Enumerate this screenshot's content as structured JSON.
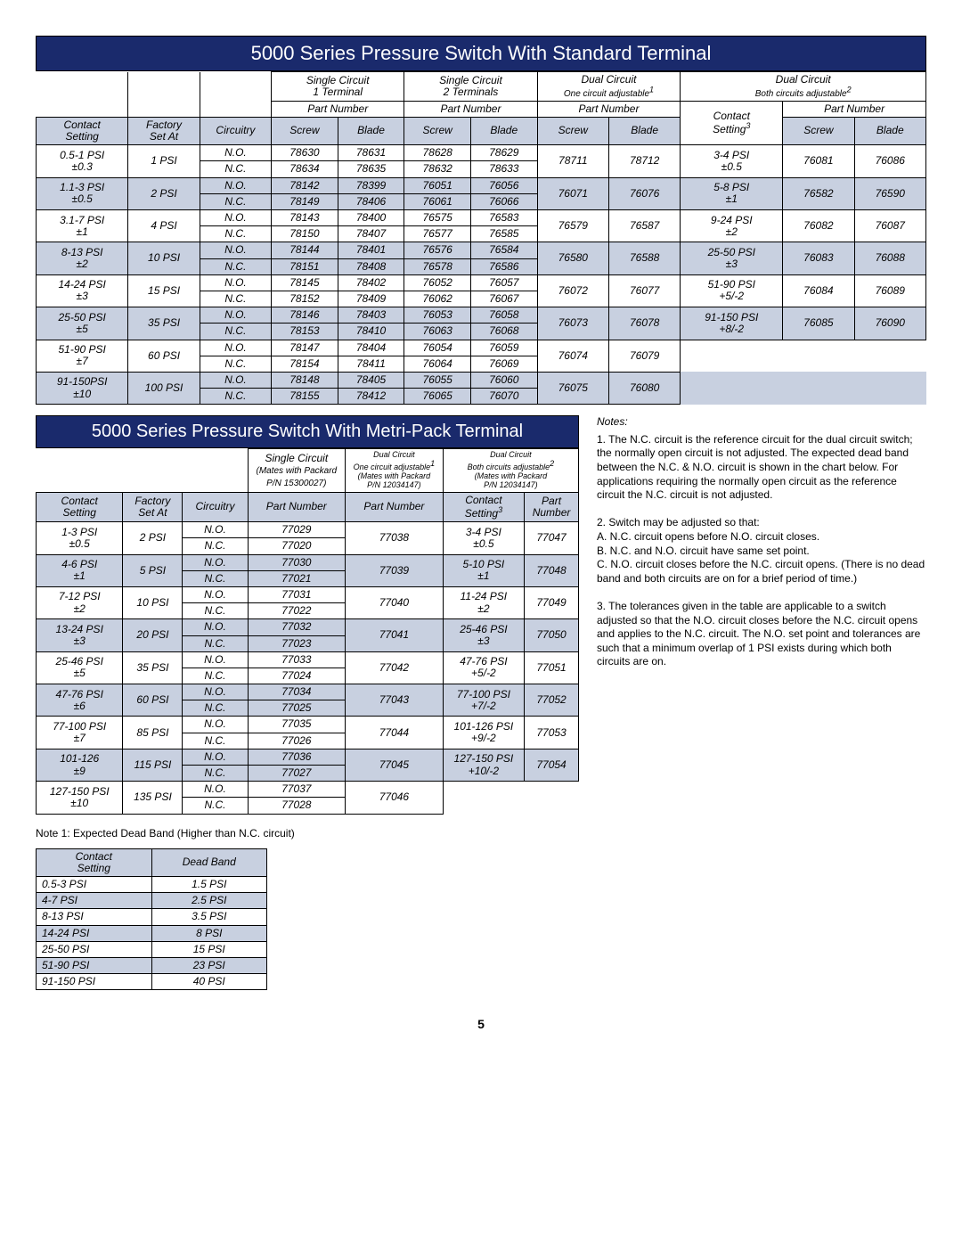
{
  "title1": "5000 Series Pressure Switch With Standard Terminal",
  "title2": "5000 Series Pressure Switch With Metri-Pack Terminal",
  "page": "5",
  "t1": {
    "h_sc1": "Single Circuit",
    "h_sc1b": "1 Terminal",
    "h_sc2": "Single Circuit",
    "h_sc2b": "2 Terminals",
    "h_dc1": "Dual Circuit",
    "h_dc1b": "One circuit adjustable",
    "h_dc2": "Dual Circuit",
    "h_dc2b": "Both circuits adjustable",
    "h_contact": "Contact",
    "h_setting": "Setting",
    "h_factory": "Factory",
    "h_setat": "Set At",
    "h_circ": "Circuitry",
    "h_pn": "Part Number",
    "h_screw": "Screw",
    "h_blade": "Blade",
    "h_contact2": "Contact",
    "h_setting3": "Setting",
    "rows": [
      {
        "cs": "0.5-1 PSI",
        "tol": "±0.3",
        "fa": "1 PSI",
        "no": [
          "78630",
          "78631",
          "78628",
          "78629"
        ],
        "nc": [
          "78634",
          "78635",
          "78632",
          "78633"
        ],
        "d1": [
          "78711",
          "78712"
        ],
        "d2cs": "3-4 PSI",
        "d2tol": "±0.5",
        "d2": [
          "76081",
          "76086"
        ]
      },
      {
        "cs": "1.1-3 PSI",
        "tol": "±0.5",
        "fa": "2 PSI",
        "no": [
          "78142",
          "78399",
          "76051",
          "76056"
        ],
        "nc": [
          "78149",
          "78406",
          "76061",
          "76066"
        ],
        "d1": [
          "76071",
          "76076"
        ],
        "d2cs": "5-8 PSI",
        "d2tol": "±1",
        "d2": [
          "76582",
          "76590"
        ],
        "shade": true
      },
      {
        "cs": "3.1-7 PSI",
        "tol": "±1",
        "fa": "4 PSI",
        "no": [
          "78143",
          "78400",
          "76575",
          "76583"
        ],
        "nc": [
          "78150",
          "78407",
          "76577",
          "76585"
        ],
        "d1": [
          "76579",
          "76587"
        ],
        "d2cs": "9-24 PSI",
        "d2tol": "±2",
        "d2": [
          "76082",
          "76087"
        ]
      },
      {
        "cs": "8-13 PSI",
        "tol": "±2",
        "fa": "10 PSI",
        "no": [
          "78144",
          "78401",
          "76576",
          "76584"
        ],
        "nc": [
          "78151",
          "78408",
          "76578",
          "76586"
        ],
        "d1": [
          "76580",
          "76588"
        ],
        "d2cs": "25-50 PSI",
        "d2tol": "±3",
        "d2": [
          "76083",
          "76088"
        ],
        "shade": true
      },
      {
        "cs": "14-24 PSI",
        "tol": "±3",
        "fa": "15 PSI",
        "no": [
          "78145",
          "78402",
          "76052",
          "76057"
        ],
        "nc": [
          "78152",
          "78409",
          "76062",
          "76067"
        ],
        "d1": [
          "76072",
          "76077"
        ],
        "d2cs": "51-90 PSI",
        "d2tol": "+5/-2",
        "d2": [
          "76084",
          "76089"
        ]
      },
      {
        "cs": "25-50 PSI",
        "tol": "±5",
        "fa": "35 PSI",
        "no": [
          "78146",
          "78403",
          "76053",
          "76058"
        ],
        "nc": [
          "78153",
          "78410",
          "76063",
          "76068"
        ],
        "d1": [
          "76073",
          "76078"
        ],
        "d2cs": "91-150 PSI",
        "d2tol": "+8/-2",
        "d2": [
          "76085",
          "76090"
        ],
        "shade": true
      },
      {
        "cs": "51-90 PSI",
        "tol": "±7",
        "fa": "60 PSI",
        "no": [
          "78147",
          "78404",
          "76054",
          "76059"
        ],
        "nc": [
          "78154",
          "78411",
          "76064",
          "76069"
        ],
        "d1": [
          "76074",
          "76079"
        ],
        "d2cs": "",
        "d2tol": "",
        "d2": [
          "",
          ""
        ]
      },
      {
        "cs": "91-150PSI",
        "tol": "±10",
        "fa": "100 PSI",
        "no": [
          "78148",
          "78405",
          "76055",
          "76060"
        ],
        "nc": [
          "78155",
          "78412",
          "76065",
          "76070"
        ],
        "d1": [
          "76075",
          "76080"
        ],
        "d2cs": "",
        "d2tol": "",
        "d2": [
          "",
          ""
        ],
        "shade": true
      }
    ]
  },
  "t2": {
    "h_sc": "Single Circuit",
    "h_scb": "(Mates with Packard",
    "h_scc": "P/N 15300027)",
    "h_dc1": "Dual Circuit",
    "h_dc1b": "One circuit adjustable",
    "h_dc1c": "(Mates with Packard",
    "h_dc1d": "P/N 12034147)",
    "h_dc2": "Dual Circuit",
    "h_dc2b": "Both circuits adjustable",
    "h_dc2c": "(Mates with Packard",
    "h_dc2d": "P/N 12034147)",
    "h_contact": "Contact",
    "h_setting": "Setting",
    "h_factory": "Factory",
    "h_setat": "Set At",
    "h_circ": "Circuitry",
    "h_pn": "Part Number",
    "h_cs3": "Contact",
    "h_set3": "Setting",
    "h_pnn": "Part",
    "h_num": "Number",
    "rows": [
      {
        "cs": "1-3 PSI",
        "tol": "±0.5",
        "fa": "2 PSI",
        "no": "77029",
        "nc": "77020",
        "d1": "77038",
        "d2cs": "3-4 PSI",
        "d2tol": "±0.5",
        "d2": "77047"
      },
      {
        "cs": "4-6 PSI",
        "tol": "±1",
        "fa": "5 PSI",
        "no": "77030",
        "nc": "77021",
        "d1": "77039",
        "d2cs": "5-10 PSI",
        "d2tol": "±1",
        "d2": "77048",
        "shade": true
      },
      {
        "cs": "7-12 PSI",
        "tol": "±2",
        "fa": "10 PSI",
        "no": "77031",
        "nc": "77022",
        "d1": "77040",
        "d2cs": "11-24 PSI",
        "d2tol": "±2",
        "d2": "77049"
      },
      {
        "cs": "13-24 PSI",
        "tol": "±3",
        "fa": "20 PSI",
        "no": "77032",
        "nc": "77023",
        "d1": "77041",
        "d2cs": "25-46 PSI",
        "d2tol": "±3",
        "d2": "77050",
        "shade": true
      },
      {
        "cs": "25-46 PSI",
        "tol": "±5",
        "fa": "35 PSI",
        "no": "77033",
        "nc": "77024",
        "d1": "77042",
        "d2cs": "47-76 PSI",
        "d2tol": "+5/-2",
        "d2": "77051"
      },
      {
        "cs": "47-76 PSI",
        "tol": "±6",
        "fa": "60 PSI",
        "no": "77034",
        "nc": "77025",
        "d1": "77043",
        "d2cs": "77-100 PSI",
        "d2tol": "+7/-2",
        "d2": "77052",
        "shade": true
      },
      {
        "cs": "77-100 PSI",
        "tol": "±7",
        "fa": "85 PSI",
        "no": "77035",
        "nc": "77026",
        "d1": "77044",
        "d2cs": "101-126 PSI",
        "d2tol": "+9/-2",
        "d2": "77053"
      },
      {
        "cs": "101-126",
        "tol": "±9",
        "fa": "115 PSI",
        "no": "77036",
        "nc": "77027",
        "d1": "77045",
        "d2cs": "127-150 PSI",
        "d2tol": "+10/-2",
        "d2": "77054",
        "shade": true
      },
      {
        "cs": "127-150 PSI",
        "tol": "±10",
        "fa": "135 PSI",
        "no": "77037",
        "nc": "77028",
        "d1": "77046",
        "d2cs": "",
        "d2tol": "",
        "d2": ""
      }
    ]
  },
  "note1_title": "Note 1: Expected Dead Band (Higher than N.C. circuit)",
  "deadband": {
    "h_cs": "Contact",
    "h_set": "Setting",
    "h_db": "Dead Band",
    "rows": [
      {
        "cs": "0.5-3 PSI",
        "db": "1.5 PSI"
      },
      {
        "cs": "4-7 PSI",
        "db": "2.5 PSI",
        "shade": true
      },
      {
        "cs": "8-13 PSI",
        "db": "3.5 PSI"
      },
      {
        "cs": "14-24 PSI",
        "db": "8 PSI",
        "shade": true
      },
      {
        "cs": "25-50 PSI",
        "db": "15 PSI"
      },
      {
        "cs": "51-90 PSI",
        "db": "23 PSI",
        "shade": true
      },
      {
        "cs": "91-150 PSI",
        "db": "40 PSI"
      }
    ]
  },
  "notes": {
    "head": "Notes:",
    "p1": "1. The N.C. circuit is the reference circuit for the dual circuit switch; the normally open circuit is not adjusted.  The expected dead band between the N.C. & N.O. circuit is shown in the chart below.  For applications requiring the normally open circuit as the reference circuit the N.C. circuit is not adjusted.",
    "p2": "2. Switch may be adjusted so that:",
    "p2a": "A. N.C. circuit opens before N.O. circuit closes.",
    "p2b": "B. N.C. and N.O. circuit have same set point.",
    "p2c": "C. N.O. circuit closes before the N.C. circuit opens.  (There is no dead band and both circuits are on for a brief period of time.)",
    "p3": "3. The tolerances given in the table are applicable to a switch adjusted so that the N.O. circuit closes before the N.C. circuit opens and applies to the N.C. circuit.  The N.O. set point and tolerances are such that a minimum overlap of 1 PSI exists during which both circuits are on."
  }
}
